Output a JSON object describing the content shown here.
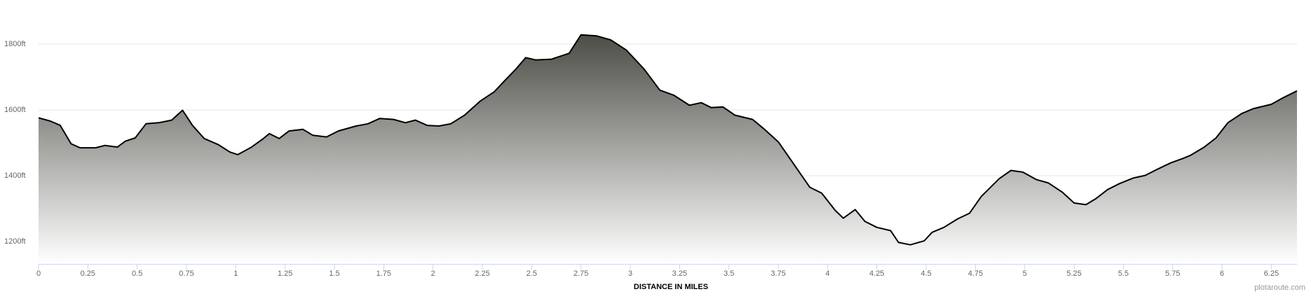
{
  "chart_data": {
    "type": "area",
    "x_label": "DISTANCE IN MILES",
    "credit": "plotaroute.com",
    "xlim": [
      0,
      6.38
    ],
    "ylim": [
      1132,
      1900
    ],
    "xticks": [
      0,
      0.25,
      0.5,
      0.75,
      1,
      1.25,
      1.5,
      1.75,
      2,
      2.25,
      2.5,
      2.75,
      3,
      3.25,
      3.5,
      3.75,
      4,
      4.25,
      4.5,
      4.75,
      5,
      5.25,
      5.5,
      5.75,
      6,
      6.25
    ],
    "yticks": [
      {
        "value": 1200,
        "label": "1200ft"
      },
      {
        "value": 1400,
        "label": "1400ft"
      },
      {
        "value": 1600,
        "label": "1600ft"
      },
      {
        "value": 1800,
        "label": "1800ft"
      }
    ],
    "grid": true,
    "color": "#000000",
    "x": [
      0,
      0.06,
      0.11,
      0.165,
      0.21,
      0.29,
      0.335,
      0.4,
      0.44,
      0.49,
      0.545,
      0.61,
      0.675,
      0.73,
      0.78,
      0.84,
      0.91,
      0.97,
      1.01,
      1.08,
      1.14,
      1.17,
      1.22,
      1.27,
      1.34,
      1.39,
      1.46,
      1.52,
      1.61,
      1.67,
      1.73,
      1.8,
      1.86,
      1.91,
      1.97,
      2.03,
      2.09,
      2.16,
      2.24,
      2.31,
      2.37,
      2.42,
      2.47,
      2.52,
      2.6,
      2.69,
      2.75,
      2.83,
      2.9,
      2.98,
      3.07,
      3.15,
      3.22,
      3.3,
      3.36,
      3.41,
      3.47,
      3.53,
      3.62,
      3.68,
      3.75,
      3.83,
      3.91,
      3.97,
      4.04,
      4.08,
      4.14,
      4.19,
      4.25,
      4.32,
      4.36,
      4.42,
      4.49,
      4.53,
      4.59,
      4.66,
      4.72,
      4.78,
      4.87,
      4.93,
      4.99,
      5.06,
      5.12,
      5.19,
      5.25,
      5.31,
      5.36,
      5.42,
      5.48,
      5.55,
      5.61,
      5.67,
      5.74,
      5.8,
      5.84,
      5.91,
      5.97,
      6.03,
      6.1,
      6.16,
      6.25,
      6.31,
      6.38
    ],
    "values": [
      1576,
      1566,
      1553,
      1497,
      1485,
      1485,
      1492,
      1487,
      1505,
      1515,
      1558,
      1561,
      1569,
      1599,
      1553,
      1513,
      1495,
      1472,
      1464,
      1487,
      1513,
      1528,
      1513,
      1536,
      1541,
      1523,
      1518,
      1536,
      1551,
      1558,
      1574,
      1571,
      1561,
      1569,
      1553,
      1551,
      1558,
      1584,
      1627,
      1655,
      1693,
      1724,
      1759,
      1752,
      1754,
      1772,
      1828,
      1825,
      1813,
      1782,
      1724,
      1660,
      1645,
      1614,
      1622,
      1607,
      1609,
      1584,
      1571,
      1541,
      1503,
      1434,
      1365,
      1347,
      1294,
      1271,
      1297,
      1261,
      1243,
      1233,
      1197,
      1190,
      1202,
      1228,
      1243,
      1269,
      1286,
      1337,
      1391,
      1416,
      1411,
      1388,
      1378,
      1350,
      1317,
      1312,
      1330,
      1358,
      1376,
      1393,
      1401,
      1419,
      1439,
      1452,
      1462,
      1487,
      1515,
      1561,
      1589,
      1604,
      1617,
      1637,
      1658
    ]
  }
}
